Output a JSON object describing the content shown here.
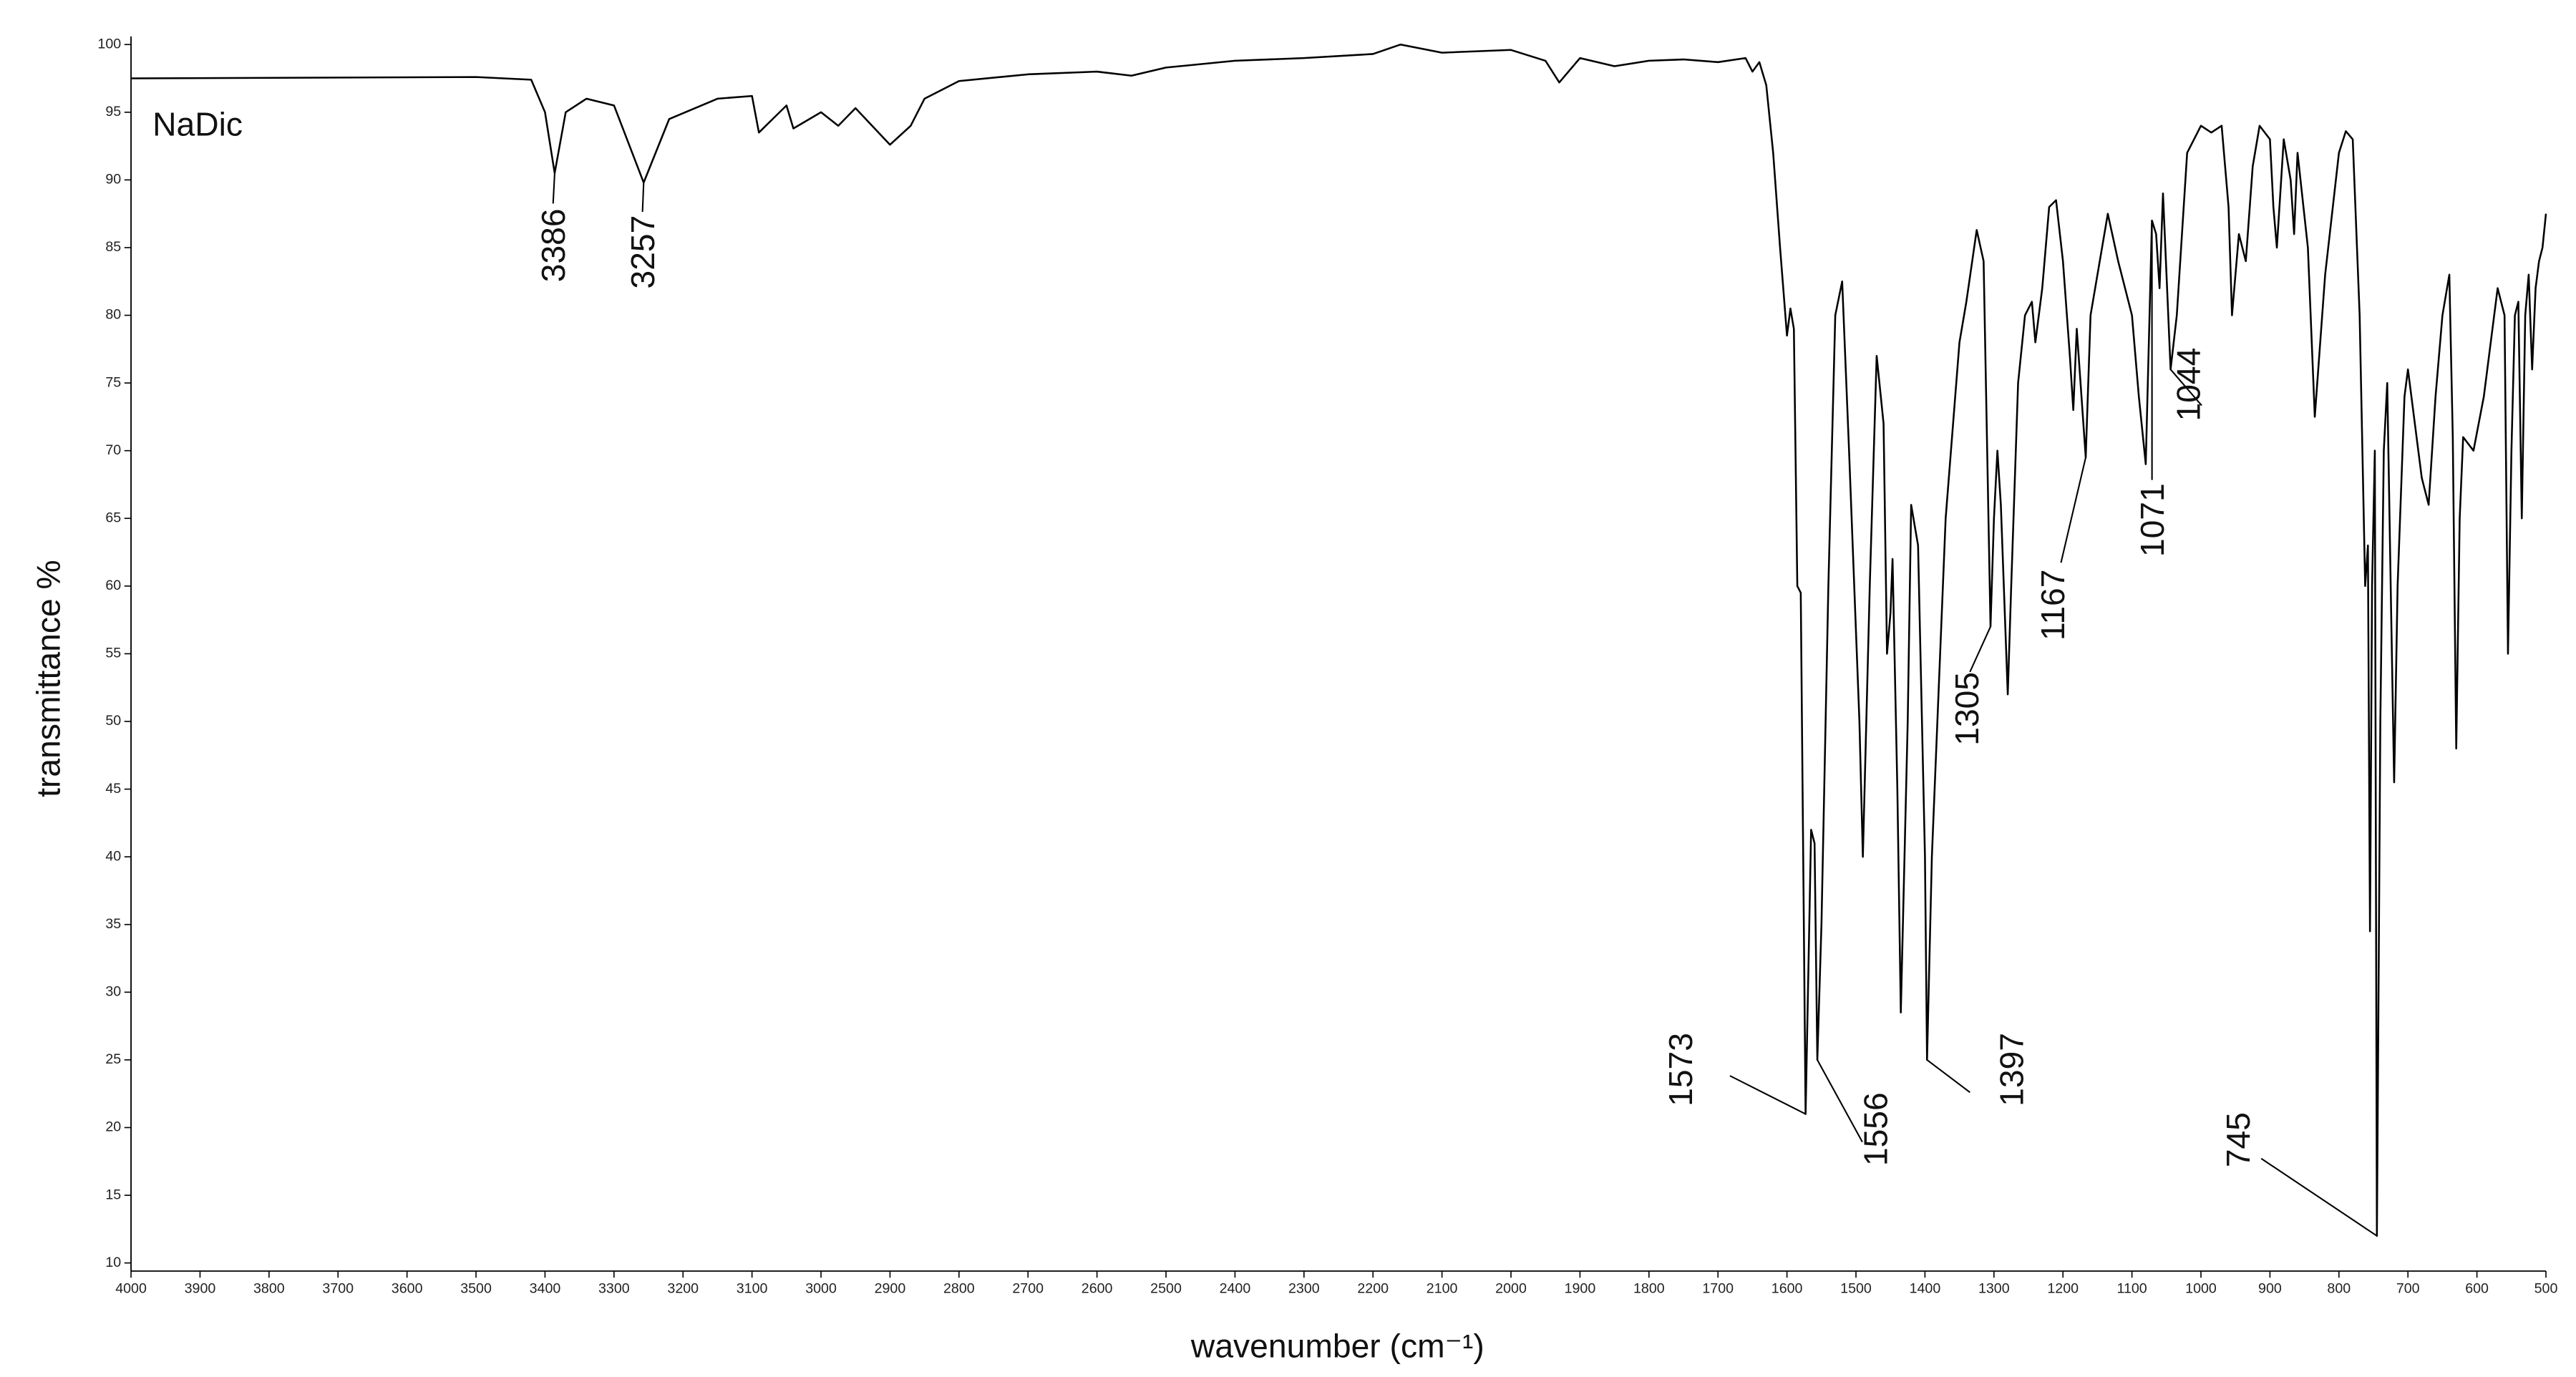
{
  "chart_data": {
    "type": "line",
    "xlabel": "wavenumber (cm⁻¹)",
    "ylabel": "transmittance %",
    "color": "#000000",
    "xlim": [
      4000,
      500
    ],
    "ylim": [
      9.4,
      100.6
    ],
    "xticks": [
      4000,
      3900,
      3800,
      3700,
      3600,
      3500,
      3400,
      3300,
      3200,
      3100,
      3000,
      2900,
      2800,
      2700,
      2600,
      2500,
      2400,
      2300,
      2200,
      2100,
      2000,
      1900,
      1800,
      1700,
      1600,
      1500,
      1400,
      1300,
      1200,
      1100,
      1000,
      900,
      800,
      700,
      600,
      500
    ],
    "yticks": [
      10,
      15,
      20,
      25,
      30,
      35,
      40,
      45,
      50,
      55,
      60,
      65,
      70,
      75,
      80,
      85,
      90,
      95,
      100
    ],
    "x": [
      4000,
      3500,
      3420,
      3400,
      3386,
      3370,
      3340,
      3300,
      3257,
      3220,
      3150,
      3100,
      3090,
      3070,
      3050,
      3040,
      3000,
      2975,
      2950,
      2900,
      2870,
      2850,
      2800,
      2700,
      2600,
      2550,
      2500,
      2400,
      2300,
      2200,
      2160,
      2100,
      2000,
      1950,
      1930,
      1900,
      1850,
      1800,
      1750,
      1700,
      1660,
      1650,
      1640,
      1630,
      1620,
      1610,
      1600,
      1595,
      1590,
      1585,
      1580,
      1573,
      1565,
      1560,
      1556,
      1550,
      1540,
      1530,
      1520,
      1510,
      1495,
      1490,
      1480,
      1470,
      1460,
      1455,
      1450,
      1447,
      1440,
      1435,
      1425,
      1420,
      1410,
      1400,
      1397,
      1390,
      1370,
      1350,
      1340,
      1325,
      1315,
      1305,
      1300,
      1295,
      1290,
      1280,
      1275,
      1265,
      1255,
      1245,
      1240,
      1230,
      1220,
      1210,
      1200,
      1190,
      1185,
      1180,
      1167,
      1160,
      1150,
      1135,
      1120,
      1110,
      1100,
      1090,
      1080,
      1071,
      1065,
      1060,
      1055,
      1044,
      1035,
      1020,
      1000,
      985,
      970,
      960,
      955,
      945,
      935,
      925,
      915,
      900,
      895,
      890,
      880,
      870,
      865,
      860,
      845,
      835,
      820,
      800,
      790,
      780,
      770,
      762,
      758,
      755,
      752,
      748,
      745,
      740,
      735,
      730,
      725,
      720,
      715,
      705,
      700,
      690,
      680,
      670,
      660,
      650,
      640,
      635,
      630,
      625,
      620,
      605,
      590,
      570,
      560,
      555,
      550,
      545,
      540,
      535,
      530,
      525,
      520,
      515,
      510,
      505,
      500
    ],
    "values": [
      97.5,
      97.6,
      97.4,
      95,
      90.5,
      95,
      96,
      95.5,
      89.8,
      94.5,
      96,
      96.2,
      93.5,
      94.5,
      95.5,
      93.8,
      95,
      94,
      95.3,
      92.6,
      94,
      96,
      97.3,
      97.8,
      98,
      97.7,
      98.3,
      98.8,
      99,
      99.3,
      100,
      99.4,
      99.6,
      98.8,
      97.2,
      99,
      98.4,
      98.8,
      98.9,
      98.7,
      99,
      98,
      98.7,
      97,
      92,
      85,
      78.5,
      80.5,
      79,
      60,
      59.5,
      21,
      42,
      41,
      25,
      35,
      60,
      80,
      82.5,
      70,
      50,
      40,
      60,
      77,
      72,
      55,
      58,
      62,
      45,
      28.5,
      50,
      66,
      63,
      40,
      25,
      40,
      65,
      78,
      81,
      86.3,
      84,
      57,
      65,
      70,
      66,
      52,
      60,
      75,
      80,
      81,
      78,
      82,
      88,
      88.5,
      84,
      77,
      73,
      79,
      69.5,
      80,
      83,
      87.5,
      84,
      82,
      80,
      74,
      69,
      87,
      86,
      82,
      89,
      76,
      80,
      92,
      94,
      93.5,
      94,
      88,
      80,
      86,
      84,
      91,
      94,
      93,
      88,
      85,
      93,
      90,
      86,
      92,
      85,
      72.5,
      83,
      92,
      93.6,
      93,
      80,
      60,
      63,
      34.5,
      60,
      70,
      12,
      50,
      70,
      75,
      60,
      45.5,
      60,
      74,
      76,
      72,
      68,
      66,
      74,
      80,
      83,
      71,
      48,
      65,
      71,
      70,
      74,
      82,
      80,
      55,
      70,
      80,
      81,
      65,
      80,
      83,
      76,
      82,
      84,
      85,
      87.5
    ],
    "sample_label": "NaDic",
    "annotations": [
      {
        "label": "3386",
        "x": 3386,
        "y": 90.5
      },
      {
        "label": "3257",
        "x": 3257,
        "y": 89.8
      },
      {
        "label": "1573",
        "x": 1573,
        "y": 21
      },
      {
        "label": "1556",
        "x": 1556,
        "y": 25
      },
      {
        "label": "1397",
        "x": 1397,
        "y": 25
      },
      {
        "label": "1305",
        "x": 1305,
        "y": 57
      },
      {
        "label": "1167",
        "x": 1167,
        "y": 69.5
      },
      {
        "label": "1071",
        "x": 1071,
        "y": 87
      },
      {
        "label": "1044",
        "x": 1044,
        "y": 76
      },
      {
        "label": "745",
        "x": 745,
        "y": 12
      }
    ]
  }
}
